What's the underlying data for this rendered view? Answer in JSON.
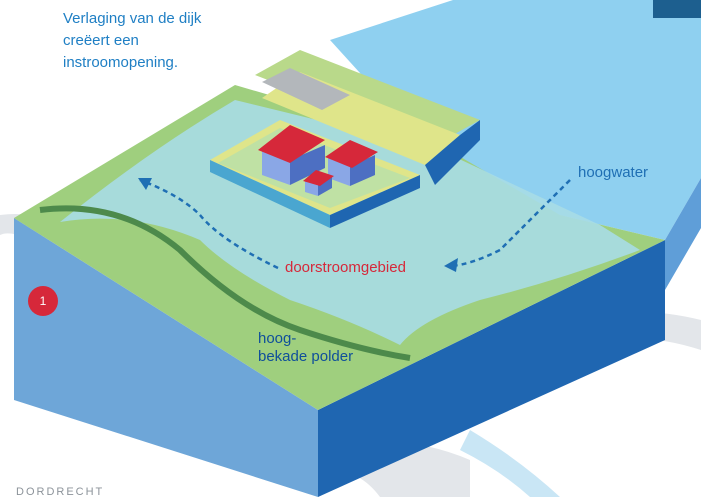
{
  "caption": "Verlaging van de dijk creëert een instroomopening.",
  "labels": {
    "hoogwater": "hoogwater",
    "doorstroomgebied": "doorstroomgebied",
    "polder_line1": "hoog-",
    "polder_line2": "bekade polder"
  },
  "badge": "1",
  "place": "DORDRECHT",
  "colors": {
    "water_light": "#8fd0f0",
    "water_flood": "#a7dbe6",
    "land_green": "#9fcf7e",
    "block_side_light": "#6ea6d8",
    "block_side_dark": "#1f66b1",
    "dike_yellow": "#dfe58a",
    "roof_red": "#d6283a",
    "house_blue": "#6f8fd6",
    "arrow_blue": "#1f6fb4",
    "text_red": "#d6283a",
    "text_blue": "#1f7fc4"
  },
  "icons": [
    "flow-arrow-left-icon",
    "flow-arrow-right-icon"
  ]
}
